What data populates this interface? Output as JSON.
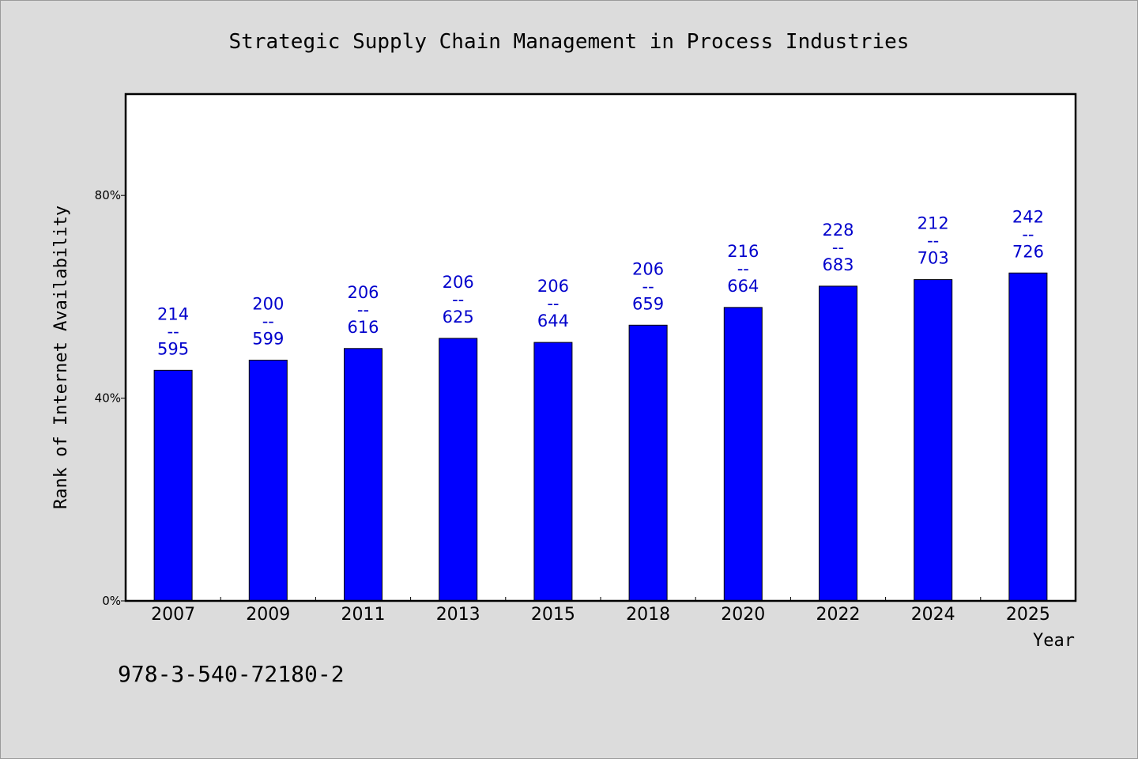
{
  "chart_data": {
    "type": "bar",
    "title": "Strategic Supply Chain Management in Process Industries",
    "xlabel": "Year",
    "ylabel": "Rank of Internet Availability",
    "categories": [
      "2007",
      "2009",
      "2011",
      "2013",
      "2015",
      "2018",
      "2020",
      "2022",
      "2024",
      "2025"
    ],
    "series": [
      {
        "values": [
          45.5,
          47.5,
          49.8,
          51.8,
          51.0,
          54.4,
          57.9,
          62.1,
          63.4,
          64.7
        ]
      }
    ],
    "data_labels": [
      {
        "top": "214",
        "sep": "--",
        "bottom": "595"
      },
      {
        "top": "200",
        "sep": "--",
        "bottom": "599"
      },
      {
        "top": "206",
        "sep": "--",
        "bottom": "616"
      },
      {
        "top": "206",
        "sep": "--",
        "bottom": "625"
      },
      {
        "top": "206",
        "sep": "--",
        "bottom": "644"
      },
      {
        "top": "206",
        "sep": "--",
        "bottom": "659"
      },
      {
        "top": "216",
        "sep": "--",
        "bottom": "664"
      },
      {
        "top": "228",
        "sep": "--",
        "bottom": "683"
      },
      {
        "top": "212",
        "sep": "--",
        "bottom": "703"
      },
      {
        "top": "242",
        "sep": "--",
        "bottom": "726"
      }
    ],
    "yticks": [
      {
        "value": 0,
        "label": "0%"
      },
      {
        "value": 40,
        "label": "40%"
      },
      {
        "value": 80,
        "label": "80%"
      }
    ],
    "ylim": [
      0,
      100
    ],
    "grid": false,
    "legend": "none",
    "colors": {
      "bar_fill": "#0000ff",
      "bar_stroke": "#000000",
      "label_color": "#0000cc",
      "plot_background": "#ffffff",
      "page_background": "#dcdcdc"
    }
  },
  "footnote": "978-3-540-72180-2"
}
